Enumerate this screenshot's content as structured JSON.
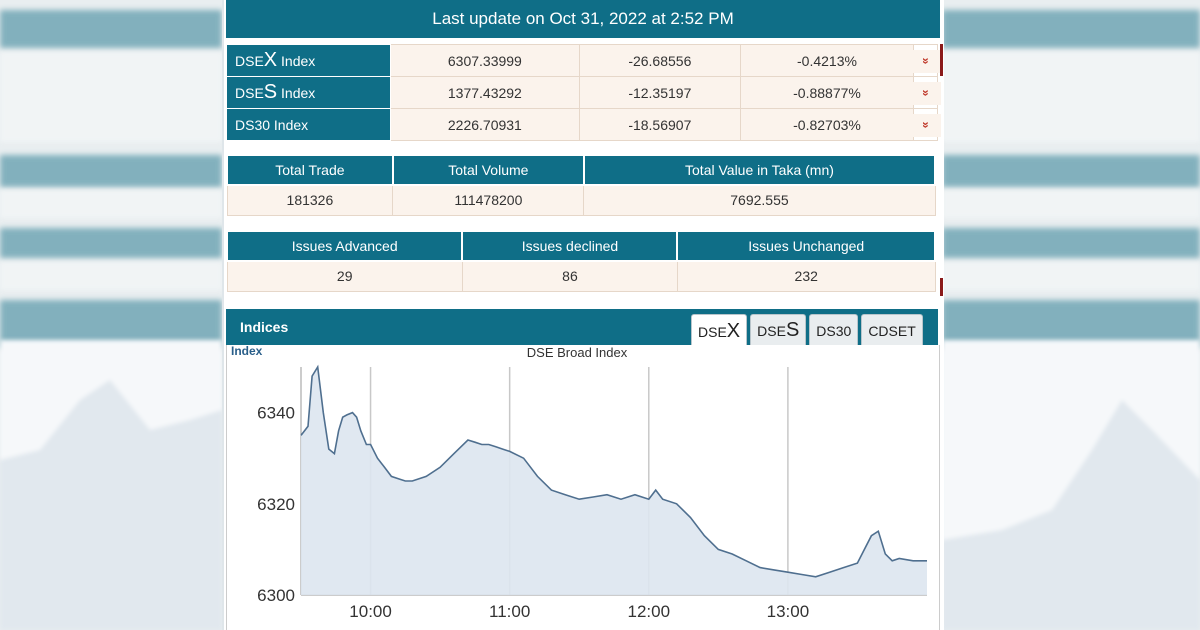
{
  "header": {
    "update_text": "Last update on Oct 31, 2022 at 2:52 PM"
  },
  "indices": [
    {
      "prefix": "DSE",
      "letter": "X",
      "suffix": " Index",
      "value": "6307.33999",
      "change": "-26.68556",
      "percent": "-0.4213%",
      "arrow": "»"
    },
    {
      "prefix": "DSE",
      "letter": "S",
      "suffix": " Index",
      "value": "1377.43292",
      "change": "-12.35197",
      "percent": "-0.88877%",
      "arrow": "»"
    },
    {
      "prefix": "DS30",
      "letter": "",
      "suffix": " Index",
      "value": "2226.70931",
      "change": "-18.56907",
      "percent": "-0.82703%",
      "arrow": "»"
    }
  ],
  "trade_stats": {
    "headers": [
      "Total Trade",
      "Total Volume",
      "Total Value in Taka (mn)"
    ],
    "values": [
      "181326",
      "111478200",
      "7692.555"
    ]
  },
  "issue_stats": {
    "headers": [
      "Issues Advanced",
      "Issues declined",
      "Issues Unchanged"
    ],
    "values": [
      "29",
      "86",
      "232"
    ]
  },
  "indices_section": {
    "title": "Indices",
    "tabs": [
      {
        "prefix": "DSE",
        "letter": "X",
        "active": true
      },
      {
        "prefix": "DSE",
        "letter": "S",
        "active": false
      },
      {
        "prefix": "DS30",
        "letter": "",
        "active": false
      },
      {
        "prefix": "CDSET",
        "letter": "",
        "active": false
      }
    ]
  },
  "colors": {
    "header_teal": "#0f6e87",
    "row_bg": "#fbf3ec",
    "down_red": "#c0392b",
    "line": "#4f6f8f",
    "area": "#dde6ef"
  },
  "chart_data": {
    "type": "area",
    "title": "DSE Broad Index",
    "ylabel": "Index",
    "xlabel": "",
    "ylim": [
      6300,
      6350
    ],
    "xlim": [
      9.5,
      14.0
    ],
    "x_ticks": [
      10,
      11,
      12,
      13
    ],
    "x_tick_labels": [
      "10:00",
      "11:00",
      "12:00",
      "13:00"
    ],
    "y_ticks": [
      6300,
      6320,
      6340
    ],
    "y_tick_labels": [
      "6300",
      "6320",
      "6340"
    ],
    "grid": "vertical",
    "series": [
      {
        "x": [
          9.5,
          9.55,
          9.58,
          9.62,
          9.66,
          9.7,
          9.74,
          9.77,
          9.8,
          9.83,
          9.87,
          9.9,
          9.93,
          9.97,
          10.0,
          10.05,
          10.1,
          10.15,
          10.2,
          10.25,
          10.3,
          10.4,
          10.5,
          10.6,
          10.7,
          10.75,
          10.8,
          10.85,
          10.9,
          10.95,
          11.0,
          11.1,
          11.2,
          11.3,
          11.4,
          11.5,
          11.6,
          11.7,
          11.8,
          11.9,
          12.0,
          12.05,
          12.1,
          12.2,
          12.3,
          12.4,
          12.5,
          12.6,
          12.7,
          12.8,
          12.9,
          13.0,
          13.1,
          13.2,
          13.3,
          13.4,
          13.5,
          13.55,
          13.6,
          13.65,
          13.7,
          13.75,
          13.8,
          13.9,
          14.0
        ],
        "y": [
          6335,
          6337,
          6348,
          6350,
          6340,
          6332,
          6331,
          6336,
          6339,
          6339.5,
          6340,
          6339,
          6336,
          6333,
          6333,
          6330,
          6328,
          6326,
          6325.5,
          6325,
          6325,
          6326,
          6328,
          6331,
          6334,
          6333.5,
          6333,
          6333,
          6332.5,
          6332,
          6331.5,
          6330,
          6326,
          6323,
          6322,
          6321,
          6321.5,
          6322,
          6321,
          6322,
          6321,
          6323,
          6321,
          6320,
          6317,
          6313,
          6310,
          6309,
          6307.5,
          6306,
          6305.5,
          6305,
          6304.5,
          6304,
          6305,
          6306,
          6307,
          6310,
          6313,
          6314,
          6309,
          6307.5,
          6308,
          6307.5,
          6307.5
        ]
      }
    ]
  }
}
